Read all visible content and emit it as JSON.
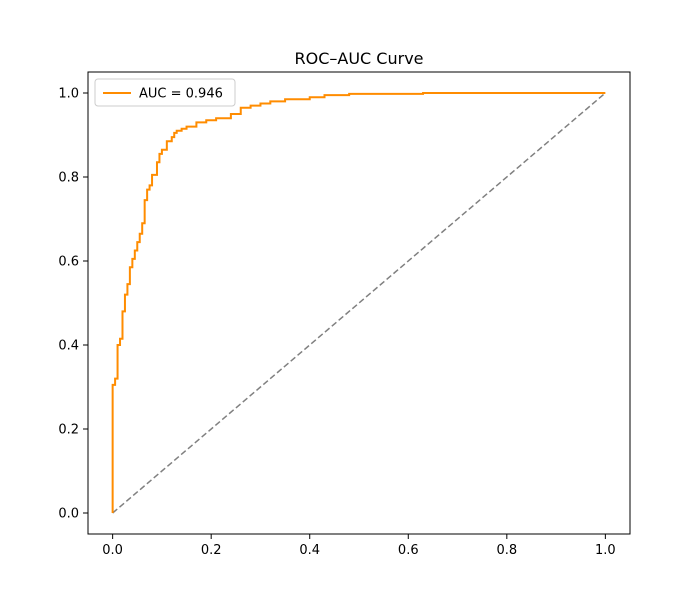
{
  "chart_data": {
    "type": "line",
    "title": "ROC–AUC Curve",
    "xlabel": "",
    "ylabel": "",
    "xlim": [
      -0.05,
      1.05
    ],
    "ylim": [
      -0.05,
      1.05
    ],
    "xticks": [
      0.0,
      0.2,
      0.4,
      0.6,
      0.8,
      1.0
    ],
    "yticks": [
      0.0,
      0.2,
      0.4,
      0.6,
      0.8,
      1.0
    ],
    "xtick_labels": [
      "0.0",
      "0.2",
      "0.4",
      "0.6",
      "0.8",
      "1.0"
    ],
    "ytick_labels": [
      "0.0",
      "0.2",
      "0.4",
      "0.6",
      "0.8",
      "1.0"
    ],
    "grid": false,
    "legend": {
      "position": "upper-left"
    },
    "series": [
      {
        "name": "AUC = 0.946",
        "color": "#ff8c00",
        "style": "solid",
        "x": [
          0.0,
          0.0,
          0.005,
          0.005,
          0.01,
          0.01,
          0.015,
          0.015,
          0.02,
          0.02,
          0.025,
          0.025,
          0.03,
          0.03,
          0.035,
          0.035,
          0.04,
          0.04,
          0.045,
          0.045,
          0.05,
          0.05,
          0.055,
          0.055,
          0.06,
          0.06,
          0.065,
          0.065,
          0.07,
          0.07,
          0.075,
          0.075,
          0.08,
          0.08,
          0.09,
          0.09,
          0.095,
          0.095,
          0.1,
          0.1,
          0.11,
          0.11,
          0.12,
          0.12,
          0.125,
          0.125,
          0.13,
          0.13,
          0.14,
          0.14,
          0.15,
          0.15,
          0.17,
          0.17,
          0.19,
          0.19,
          0.21,
          0.21,
          0.24,
          0.24,
          0.26,
          0.26,
          0.28,
          0.28,
          0.3,
          0.3,
          0.32,
          0.32,
          0.35,
          0.35,
          0.4,
          0.4,
          0.43,
          0.43,
          0.48,
          0.48,
          0.63,
          0.63,
          1.0
        ],
        "y": [
          0.0,
          0.305,
          0.305,
          0.32,
          0.32,
          0.4,
          0.4,
          0.415,
          0.415,
          0.48,
          0.48,
          0.52,
          0.52,
          0.545,
          0.545,
          0.585,
          0.585,
          0.605,
          0.605,
          0.625,
          0.625,
          0.645,
          0.645,
          0.665,
          0.665,
          0.69,
          0.69,
          0.745,
          0.745,
          0.77,
          0.77,
          0.78,
          0.78,
          0.805,
          0.805,
          0.835,
          0.835,
          0.855,
          0.855,
          0.865,
          0.865,
          0.885,
          0.885,
          0.895,
          0.895,
          0.905,
          0.905,
          0.91,
          0.91,
          0.915,
          0.915,
          0.92,
          0.92,
          0.93,
          0.93,
          0.935,
          0.935,
          0.94,
          0.94,
          0.95,
          0.95,
          0.965,
          0.965,
          0.97,
          0.97,
          0.975,
          0.975,
          0.98,
          0.98,
          0.985,
          0.985,
          0.99,
          0.99,
          0.995,
          0.995,
          0.998,
          0.998,
          1.0,
          1.0
        ]
      },
      {
        "name": "",
        "color": "#808080",
        "style": "dashed",
        "x": [
          0.0,
          1.0
        ],
        "y": [
          0.0,
          1.0
        ]
      }
    ]
  }
}
